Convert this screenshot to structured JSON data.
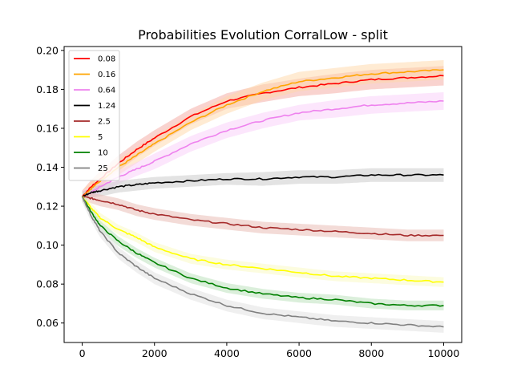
{
  "chart_data": {
    "type": "line",
    "title": "Probabilities Evolution CorralLow  - split",
    "xlabel": "",
    "ylabel": "",
    "xlim": [
      -500,
      10500
    ],
    "ylim": [
      0.05,
      0.202
    ],
    "xticks": [
      0,
      2000,
      4000,
      6000,
      8000,
      10000
    ],
    "xtick_labels": [
      "0",
      "2000",
      "4000",
      "6000",
      "8000",
      "10000"
    ],
    "yticks": [
      0.06,
      0.08,
      0.1,
      0.12,
      0.14,
      0.16,
      0.18,
      0.2
    ],
    "ytick_labels": [
      "0.06",
      "0.08",
      "0.10",
      "0.12",
      "0.14",
      "0.16",
      "0.18",
      "0.20"
    ],
    "grid": false,
    "legend_position": "top-left",
    "x": [
      0,
      250,
      500,
      1000,
      1500,
      2000,
      3000,
      4000,
      5000,
      6000,
      7000,
      8000,
      9000,
      10000
    ],
    "series": [
      {
        "name": "0.08",
        "color": "#ff0000",
        "band_color": "#f4a8a0",
        "values": [
          0.125,
          0.13,
          0.134,
          0.142,
          0.149,
          0.155,
          0.166,
          0.174,
          0.178,
          0.181,
          0.183,
          0.185,
          0.186,
          0.187
        ],
        "band": [
          0.003,
          0.0035,
          0.004,
          0.004,
          0.004,
          0.004,
          0.004,
          0.004,
          0.0045,
          0.0045,
          0.005,
          0.005,
          0.005,
          0.005
        ]
      },
      {
        "name": "0.16",
        "color": "#ffa500",
        "band_color": "#ffd8a8",
        "values": [
          0.125,
          0.129,
          0.133,
          0.14,
          0.146,
          0.152,
          0.163,
          0.172,
          0.179,
          0.184,
          0.186,
          0.188,
          0.189,
          0.19
        ],
        "band": [
          0.003,
          0.0035,
          0.004,
          0.004,
          0.004,
          0.004,
          0.004,
          0.0045,
          0.0045,
          0.005,
          0.005,
          0.005,
          0.005,
          0.005
        ]
      },
      {
        "name": "0.64",
        "color": "#ee82ee",
        "band_color": "#f9cdf9",
        "values": [
          0.125,
          0.127,
          0.13,
          0.135,
          0.139,
          0.143,
          0.152,
          0.159,
          0.164,
          0.168,
          0.17,
          0.172,
          0.173,
          0.174
        ],
        "band": [
          0.003,
          0.003,
          0.0035,
          0.0035,
          0.0035,
          0.004,
          0.004,
          0.004,
          0.004,
          0.004,
          0.0045,
          0.0045,
          0.0045,
          0.0045
        ]
      },
      {
        "name": "1.24",
        "color": "#000000",
        "band_color": "#c8c8c8",
        "values": [
          0.125,
          0.127,
          0.128,
          0.13,
          0.131,
          0.132,
          0.133,
          0.134,
          0.134,
          0.135,
          0.135,
          0.136,
          0.136,
          0.136
        ],
        "band": [
          0.0025,
          0.0025,
          0.003,
          0.003,
          0.003,
          0.003,
          0.003,
          0.003,
          0.0035,
          0.0035,
          0.0035,
          0.0035,
          0.0035,
          0.0035
        ]
      },
      {
        "name": "2.5",
        "color": "#a52a2a",
        "band_color": "#e8b8b0",
        "values": [
          0.125,
          0.124,
          0.123,
          0.121,
          0.118,
          0.116,
          0.113,
          0.111,
          0.109,
          0.108,
          0.107,
          0.106,
          0.105,
          0.105
        ],
        "band": [
          0.0025,
          0.0025,
          0.003,
          0.003,
          0.003,
          0.003,
          0.003,
          0.003,
          0.003,
          0.003,
          0.003,
          0.003,
          0.003,
          0.003
        ]
      },
      {
        "name": "5",
        "color": "#ffff00",
        "band_color": "#fafac0",
        "values": [
          0.125,
          0.119,
          0.114,
          0.108,
          0.104,
          0.099,
          0.093,
          0.09,
          0.088,
          0.086,
          0.084,
          0.083,
          0.082,
          0.081
        ],
        "band": [
          0.0025,
          0.0025,
          0.0025,
          0.0025,
          0.0025,
          0.0025,
          0.0025,
          0.0025,
          0.0025,
          0.0025,
          0.0025,
          0.0025,
          0.0025,
          0.0025
        ]
      },
      {
        "name": "10",
        "color": "#008000",
        "band_color": "#b8e0b8",
        "values": [
          0.125,
          0.117,
          0.11,
          0.102,
          0.096,
          0.091,
          0.083,
          0.078,
          0.075,
          0.073,
          0.072,
          0.07,
          0.069,
          0.069
        ],
        "band": [
          0.0025,
          0.0025,
          0.0025,
          0.0025,
          0.0025,
          0.0025,
          0.0025,
          0.0025,
          0.0025,
          0.0025,
          0.0025,
          0.0025,
          0.0025,
          0.0025
        ]
      },
      {
        "name": "25",
        "color": "#808080",
        "band_color": "#e0e0e0",
        "values": [
          0.125,
          0.115,
          0.107,
          0.096,
          0.089,
          0.083,
          0.075,
          0.069,
          0.065,
          0.063,
          0.061,
          0.06,
          0.059,
          0.058
        ],
        "band": [
          0.003,
          0.003,
          0.003,
          0.003,
          0.003,
          0.003,
          0.003,
          0.003,
          0.003,
          0.003,
          0.003,
          0.003,
          0.003,
          0.003
        ]
      }
    ]
  }
}
